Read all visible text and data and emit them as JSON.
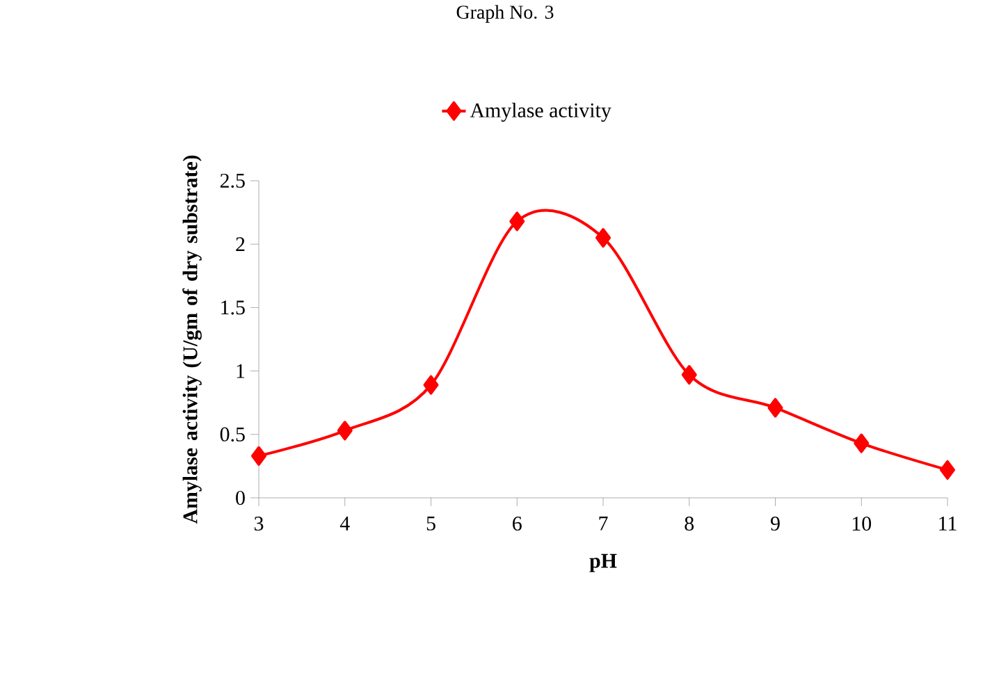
{
  "chart_data": {
    "type": "line",
    "title": "Graph No. 3",
    "xlabel": "pH",
    "ylabel": "Amylase activity (U/gm of dry substrate)",
    "x": [
      3,
      4,
      5,
      6,
      7,
      8,
      9,
      10,
      11
    ],
    "series": [
      {
        "name": "Amylase activity",
        "color": "#ff0000",
        "values": [
          0.33,
          0.53,
          0.89,
          2.18,
          2.05,
          0.97,
          0.71,
          0.43,
          0.22
        ]
      }
    ],
    "xlim": [
      3,
      11
    ],
    "xticks": [
      3,
      4,
      5,
      6,
      7,
      8,
      9,
      10,
      11
    ],
    "ylim": [
      0,
      2.5
    ],
    "yticks": [
      0,
      0.5,
      1,
      1.5,
      2,
      2.5
    ],
    "legend": "top",
    "marker": "diamond",
    "line_style": "solid",
    "grid": false
  }
}
